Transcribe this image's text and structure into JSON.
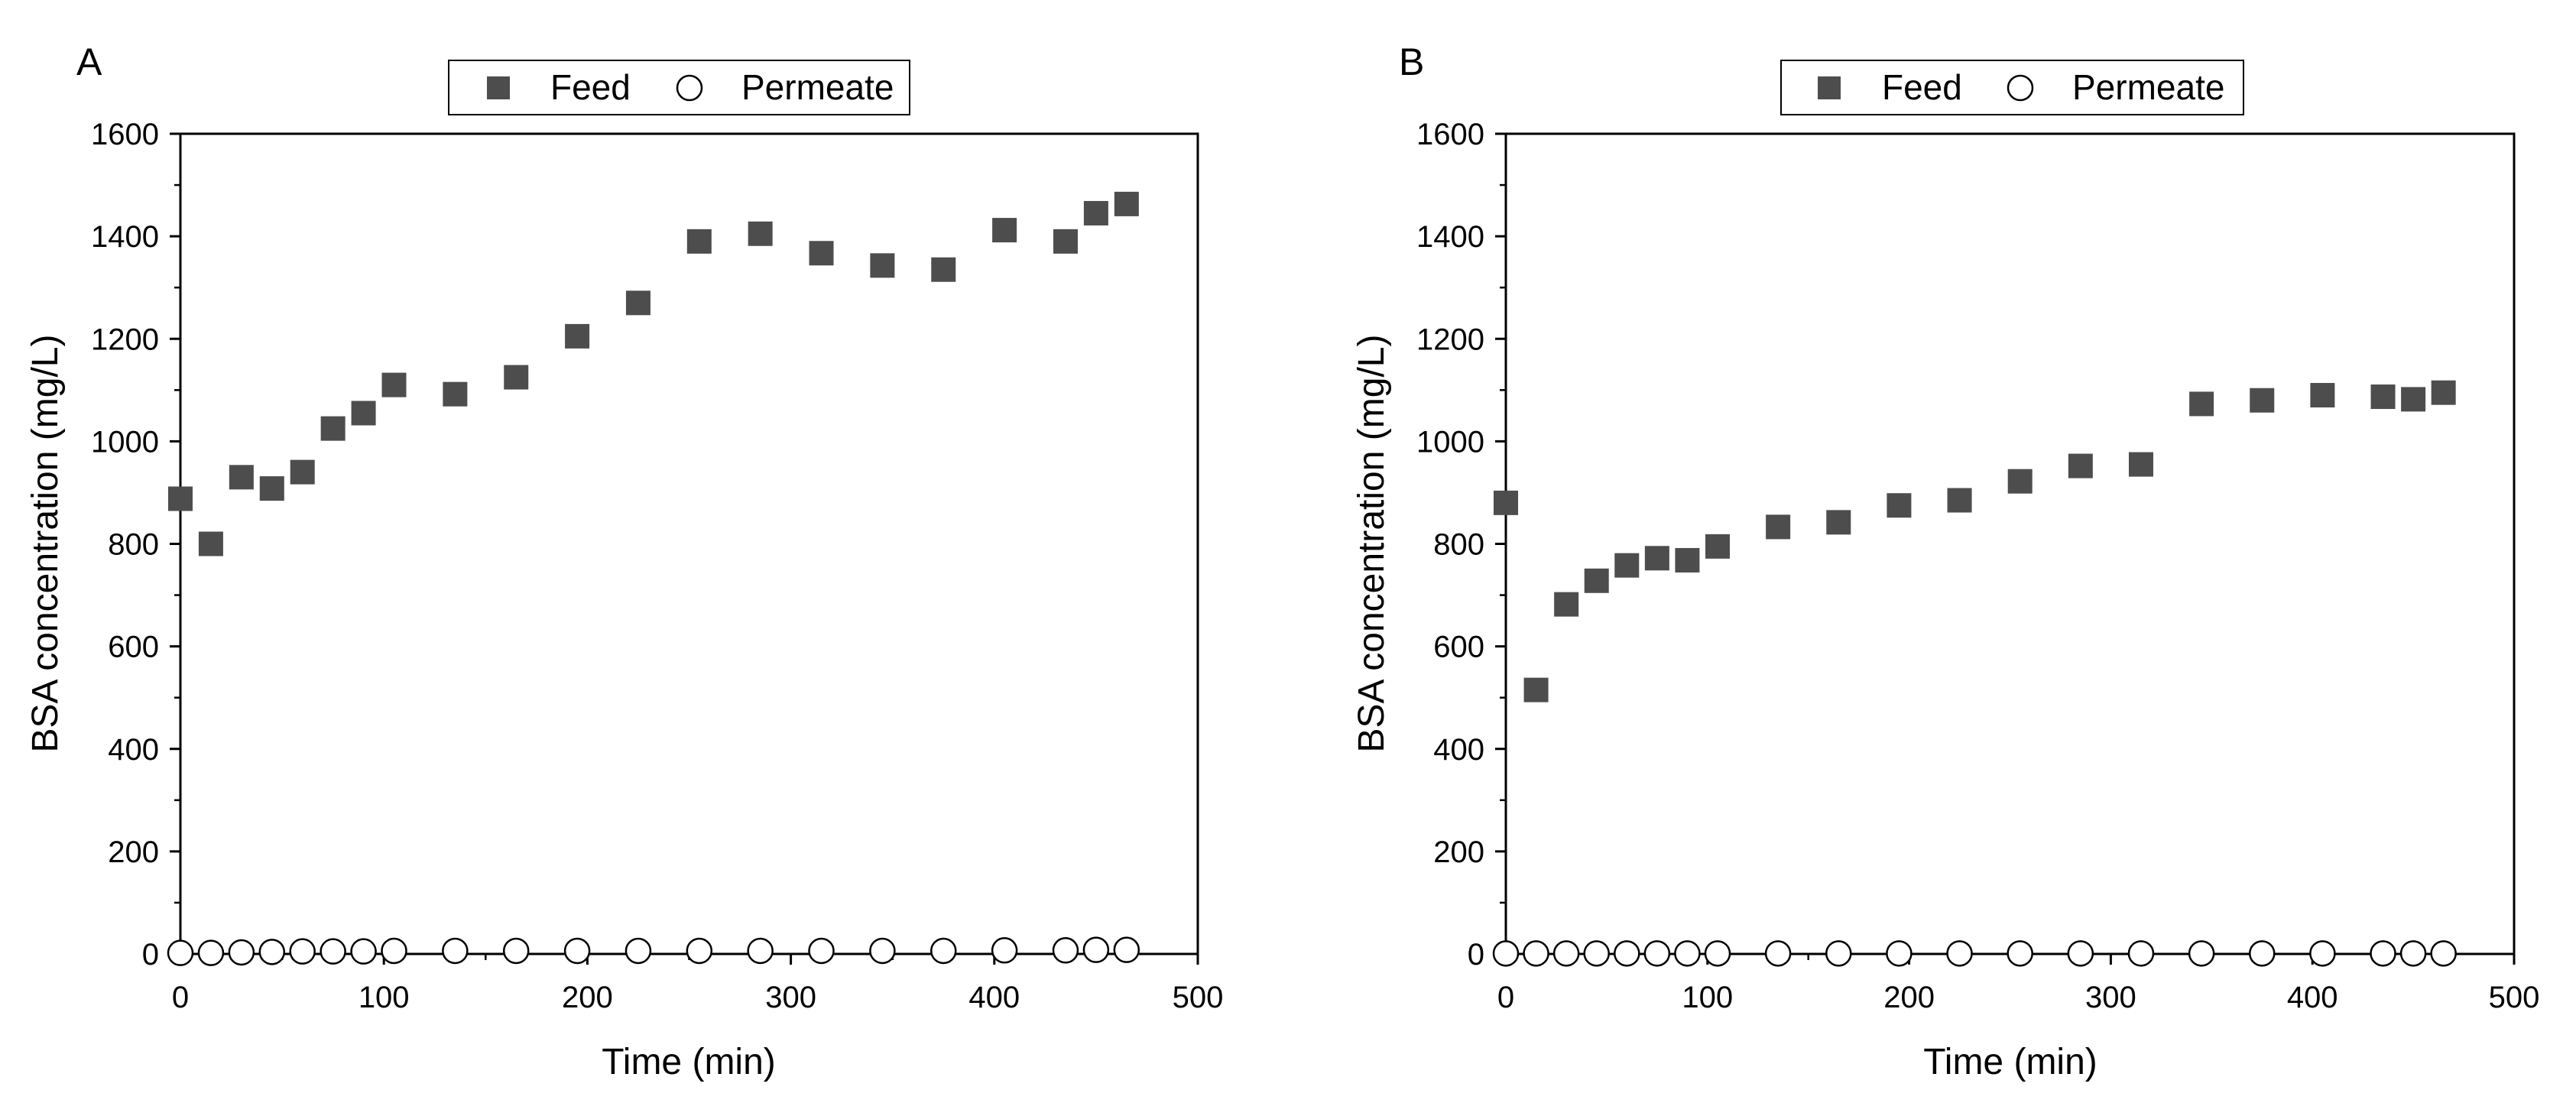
{
  "colors": {
    "feed": "#4d4d4d",
    "axis": "#000000",
    "permeate_fill": "#ffffff"
  },
  "chart_data": [
    {
      "panel_label": "A",
      "type": "scatter",
      "xlabel": "Time (min)",
      "ylabel": "BSA concentration (mg/L)",
      "xlim": [
        0,
        500
      ],
      "ylim": [
        0,
        1600
      ],
      "xticks": [
        "0",
        "100",
        "200",
        "300",
        "400",
        "500"
      ],
      "yticks": [
        "0",
        "200",
        "400",
        "600",
        "800",
        "1000",
        "1200",
        "1400",
        "1600"
      ],
      "legend": {
        "placement": "top-center",
        "entries": [
          "Feed",
          "Permeate"
        ]
      },
      "series": [
        {
          "name": "Feed",
          "marker": "square-filled",
          "x": [
            0,
            15,
            30,
            45,
            60,
            75,
            90,
            105,
            135,
            165,
            195,
            225,
            255,
            285,
            315,
            345,
            375,
            405,
            435,
            450,
            465
          ],
          "y": [
            888,
            800,
            930,
            908,
            940,
            1025,
            1055,
            1110,
            1092,
            1125,
            1205,
            1270,
            1390,
            1405,
            1367,
            1343,
            1335,
            1412,
            1390,
            1445,
            1463
          ]
        },
        {
          "name": "Permeate",
          "marker": "circle-open",
          "x": [
            0,
            15,
            30,
            45,
            60,
            75,
            90,
            105,
            135,
            165,
            195,
            225,
            255,
            285,
            315,
            345,
            375,
            405,
            435,
            450,
            465
          ],
          "y": [
            2,
            2,
            3,
            4,
            5,
            5,
            5,
            6,
            6,
            6,
            6,
            6,
            6,
            6,
            6,
            6,
            6,
            7,
            7,
            8,
            8
          ]
        }
      ]
    },
    {
      "panel_label": "B",
      "type": "scatter",
      "xlabel": "Time (min)",
      "ylabel": "BSA concentration (mg/L)",
      "xlim": [
        0,
        500
      ],
      "ylim": [
        0,
        1600
      ],
      "xticks": [
        "0",
        "100",
        "200",
        "300",
        "400",
        "500"
      ],
      "yticks": [
        "0",
        "200",
        "400",
        "600",
        "800",
        "1000",
        "1200",
        "1400",
        "1600"
      ],
      "legend": {
        "placement": "top-center",
        "entries": [
          "Feed",
          "Permeate"
        ]
      },
      "series": [
        {
          "name": "Feed",
          "marker": "square-filled",
          "x": [
            0,
            15,
            30,
            45,
            60,
            75,
            90,
            105,
            135,
            165,
            195,
            225,
            255,
            285,
            315,
            345,
            375,
            405,
            435,
            450,
            465
          ],
          "y": [
            880,
            515,
            682,
            728,
            758,
            772,
            768,
            795,
            833,
            842,
            875,
            885,
            922,
            952,
            955,
            1073,
            1080,
            1090,
            1087,
            1082,
            1095
          ]
        },
        {
          "name": "Permeate",
          "marker": "circle-open",
          "x": [
            0,
            15,
            30,
            45,
            60,
            75,
            90,
            105,
            135,
            165,
            195,
            225,
            255,
            285,
            315,
            345,
            375,
            405,
            435,
            450,
            465
          ],
          "y": [
            1,
            1,
            1,
            1,
            1,
            1,
            1,
            1,
            1,
            1,
            1,
            1,
            1,
            1,
            1,
            1,
            1,
            1,
            1,
            1,
            1
          ]
        }
      ]
    }
  ]
}
